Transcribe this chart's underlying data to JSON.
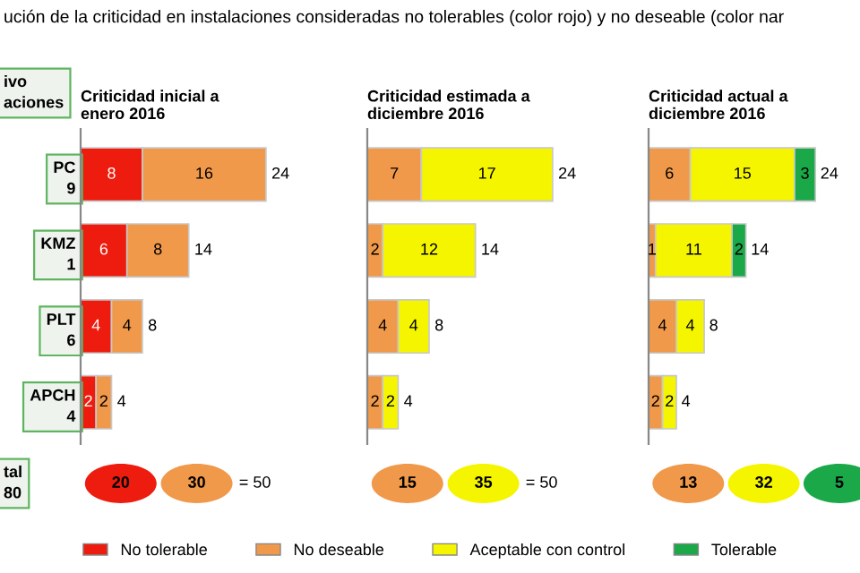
{
  "chart_data": [
    {
      "type": "other",
      "title": "ución de la criticidad en instalaciones consideradas no tolerables (color rojo) y no deseable (color nar",
      "annotations": [
        "ivo\naciones",
        "tal\n80"
      ]
    },
    {
      "type": "bar",
      "orientation": "horizontal",
      "stacked": true,
      "title": "Criticidad inicial a\nenero 2016",
      "categories": [
        "PC\n9",
        "KMZ\n1",
        "PLT\n6",
        "APCH\n4"
      ],
      "tick_labels": "y",
      "data_labels": true,
      "totals": [
        "24",
        "14",
        "8",
        "4"
      ],
      "legend": "bottom",
      "annotations": [
        "20",
        "30",
        "= 50"
      ],
      "series": [
        {
          "name": "No tolerable",
          "color": "#ee1c0e",
          "values": [
            8,
            6,
            4,
            2
          ]
        },
        {
          "name": "No deseable",
          "color": "#f0994a",
          "values": [
            16,
            8,
            4,
            2
          ]
        }
      ]
    },
    {
      "type": "bar",
      "orientation": "horizontal",
      "stacked": true,
      "title": "Criticidad estimada a\ndiciembre 2016",
      "categories": [
        null,
        null,
        null,
        null
      ],
      "data_labels": true,
      "totals": [
        "24",
        "14",
        "8",
        "4"
      ],
      "legend": "bottom",
      "annotations": [
        "15",
        "35",
        "= 50"
      ],
      "series": [
        {
          "color": "#f0994a",
          "values": [
            7,
            2,
            4,
            2
          ]
        },
        {
          "name": "Aceptable con control",
          "color": "#f5f500",
          "values": [
            17,
            12,
            4,
            2
          ]
        }
      ]
    },
    {
      "type": "bar",
      "orientation": "horizontal",
      "stacked": true,
      "title": "Criticidad actual a\ndiciembre 2016",
      "categories": [
        null,
        null,
        null,
        null
      ],
      "data_labels": true,
      "totals": [
        "24",
        "14",
        "8",
        "4"
      ],
      "legend": "bottom",
      "annotations": [
        "13",
        "32",
        "5"
      ],
      "series": [
        {
          "color": "#f0994a",
          "values": [
            6,
            1,
            4,
            2
          ]
        },
        {
          "color": "#f5f500",
          "values": [
            15,
            11,
            4,
            2
          ]
        },
        {
          "name": "Tolerable",
          "color": "#1aa848",
          "values": [
            3,
            2,
            null,
            null
          ]
        }
      ]
    }
  ]
}
